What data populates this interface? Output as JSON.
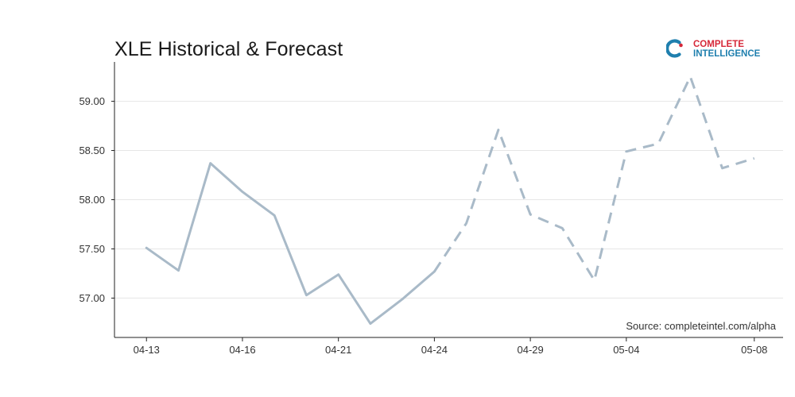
{
  "title": "XLE Historical & Forecast",
  "logo": {
    "line1": "COMPLETE",
    "line2": "INTELLIGENCE",
    "line1_color": "#d62839",
    "line2_color": "#1f7fae",
    "icon_color": "#1f7fae",
    "dot_color": "#d62839"
  },
  "source": "Source: completeintel.com/alpha",
  "chart_data": {
    "type": "line",
    "title": "XLE Historical & Forecast",
    "xlabel": "",
    "ylabel": "",
    "ylim": [
      56.6,
      59.4
    ],
    "xlim": [
      -1,
      19.9
    ],
    "yticks": [
      57.0,
      57.5,
      58.0,
      58.5,
      59.0
    ],
    "ytick_labels": [
      "57.00",
      "57.50",
      "58.00",
      "58.50",
      "59.00"
    ],
    "xticks": [
      0,
      3,
      6,
      9,
      12,
      15,
      19
    ],
    "xtick_labels": [
      "04-13",
      "04-16",
      "04-21",
      "04-24",
      "04-29",
      "05-04",
      "05-08"
    ],
    "grid": "horizontal",
    "line_color": "#a9bac8",
    "series": [
      {
        "style": "solid",
        "x": [
          0,
          1,
          2,
          3,
          4,
          5,
          6,
          7,
          8,
          9
        ],
        "values": [
          57.51,
          57.28,
          58.37,
          58.08,
          57.84,
          57.03,
          57.24,
          56.74,
          56.99,
          57.27
        ]
      },
      {
        "style": "dashed",
        "x": [
          9,
          10,
          11,
          12,
          13,
          14,
          15,
          16,
          17,
          18,
          19
        ],
        "values": [
          57.27,
          57.76,
          58.71,
          57.85,
          57.71,
          57.18,
          58.49,
          58.57,
          59.25,
          58.32,
          58.42
        ]
      }
    ]
  }
}
